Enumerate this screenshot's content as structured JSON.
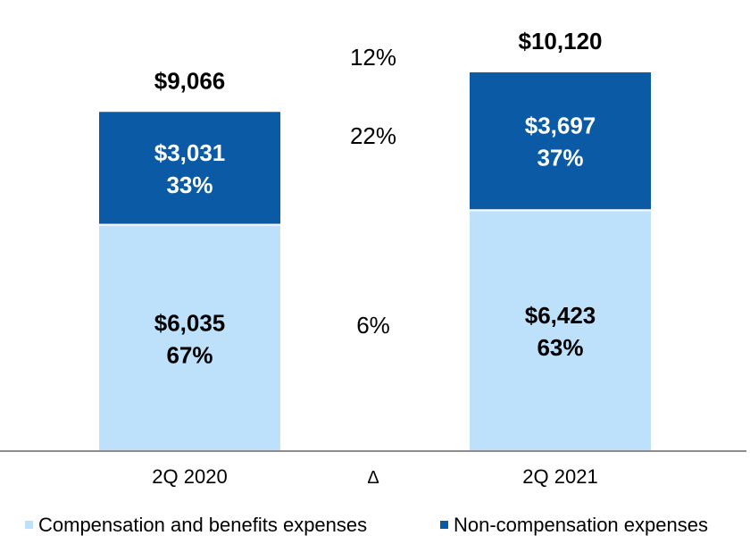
{
  "chart_data": {
    "type": "bar",
    "stacked": true,
    "categories": [
      "2Q 2020",
      "2Q 2021"
    ],
    "series": [
      {
        "name": "Compensation and benefits expenses",
        "color": "#bde0fb",
        "values": [
          6035,
          6423
        ],
        "value_labels": [
          "$6,035",
          "$6,423"
        ],
        "pct_labels": [
          "67%",
          "63%"
        ]
      },
      {
        "name": "Non-compensation expenses",
        "color": "#0a5aa5",
        "values": [
          3031,
          3697
        ],
        "value_labels": [
          "$3,031",
          "$3,697"
        ],
        "pct_labels": [
          "33%",
          "37%"
        ]
      }
    ],
    "totals": [
      9066,
      10120
    ],
    "total_labels": [
      "$9,066",
      "$10,120"
    ],
    "delta": {
      "label": "Δ",
      "total": "12%",
      "series": [
        "6%",
        "22%"
      ]
    },
    "ylim": [
      0,
      10500
    ],
    "legend_position": "bottom"
  }
}
